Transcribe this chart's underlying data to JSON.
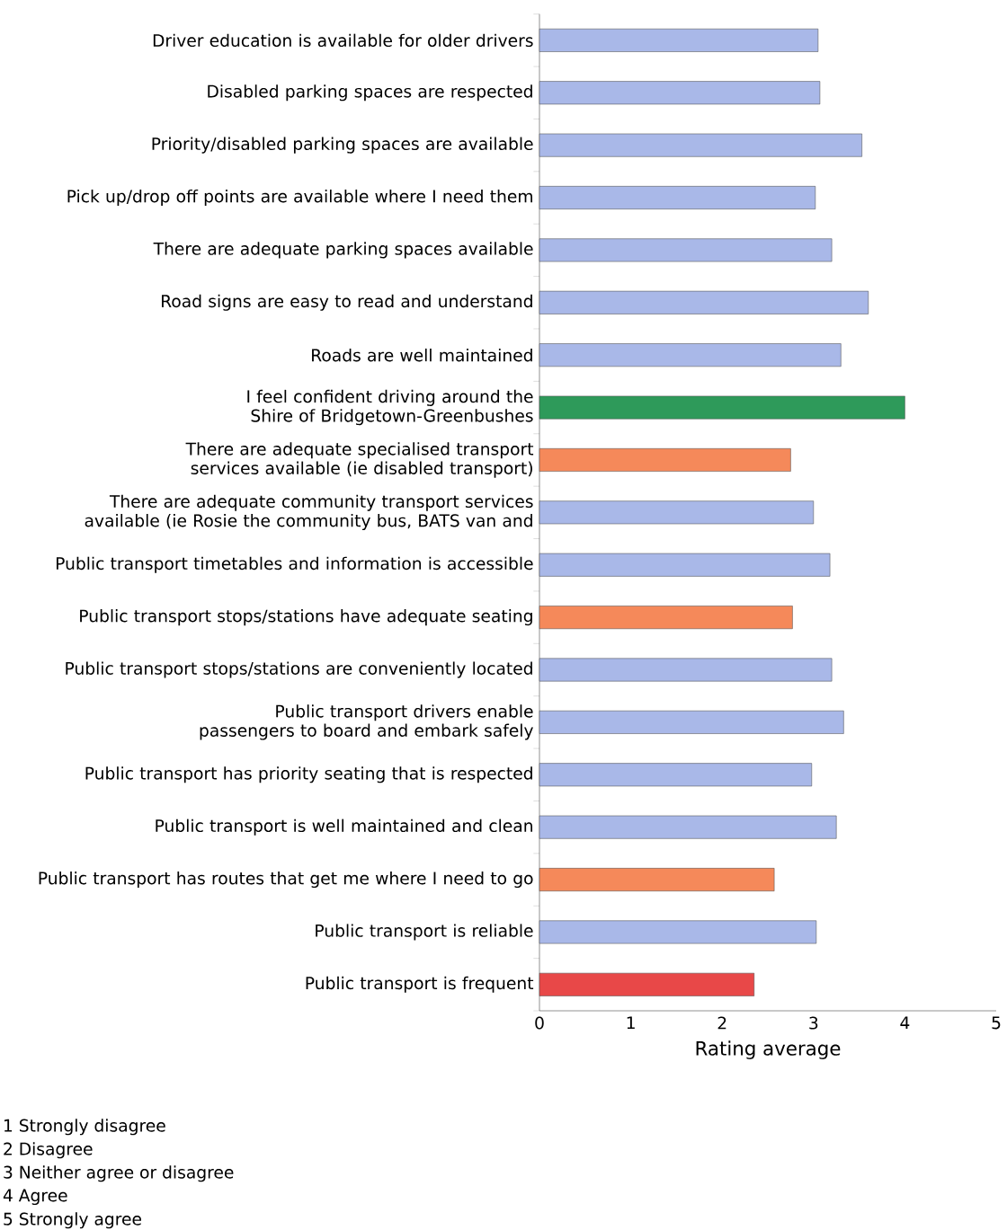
{
  "chart_data": {
    "type": "bar",
    "orientation": "horizontal",
    "xlabel": "Rating average",
    "categories": [
      "Driver education is available for older drivers",
      "Disabled parking spaces are respected",
      "Priority/disabled parking spaces are available",
      "Pick up/drop off points are available where I need them",
      "There are adequate parking spaces available",
      "Road signs are easy to read and understand",
      "Roads are well maintained",
      "I feel confident driving around the Shire of Bridgetown-Greenbushes",
      "There are adequate specialised transport services available (ie disabled transport)",
      "There are adequate community transport services available (ie Rosie the community bus, BATS van and",
      "Public transport timetables and information is accessible",
      "Public transport stops/stations have adequate seating",
      "Public transport stops/stations are conveniently located",
      "Public transport drivers enable passengers to board and embark safely",
      "Public transport has priority seating that is respected",
      "Public transport is well maintained and clean",
      "Public transport has routes that get me where I need to go",
      "Public transport is reliable",
      "Public transport is frequent"
    ],
    "values": [
      3.05,
      3.07,
      3.53,
      3.02,
      3.2,
      3.6,
      3.3,
      4.0,
      2.75,
      3.0,
      3.18,
      2.77,
      3.2,
      3.33,
      2.98,
      3.25,
      2.57,
      3.03,
      2.35
    ],
    "colors": [
      "#a9b8e8",
      "#a9b8e8",
      "#a9b8e8",
      "#a9b8e8",
      "#a9b8e8",
      "#a9b8e8",
      "#a9b8e8",
      "#2e9a5a",
      "#f5895a",
      "#a9b8e8",
      "#a9b8e8",
      "#f5895a",
      "#a9b8e8",
      "#a9b8e8",
      "#a9b8e8",
      "#a9b8e8",
      "#f5895a",
      "#a9b8e8",
      "#e84848"
    ],
    "xlim": [
      0,
      5
    ],
    "xticks": [
      0,
      1,
      2,
      3,
      4,
      5
    ],
    "grid": false,
    "annotations": [
      "1 Strongly disagree",
      "2 Disagree",
      "3 Neither agree or disagree",
      "4 Agree",
      "5 Strongly agree"
    ]
  }
}
